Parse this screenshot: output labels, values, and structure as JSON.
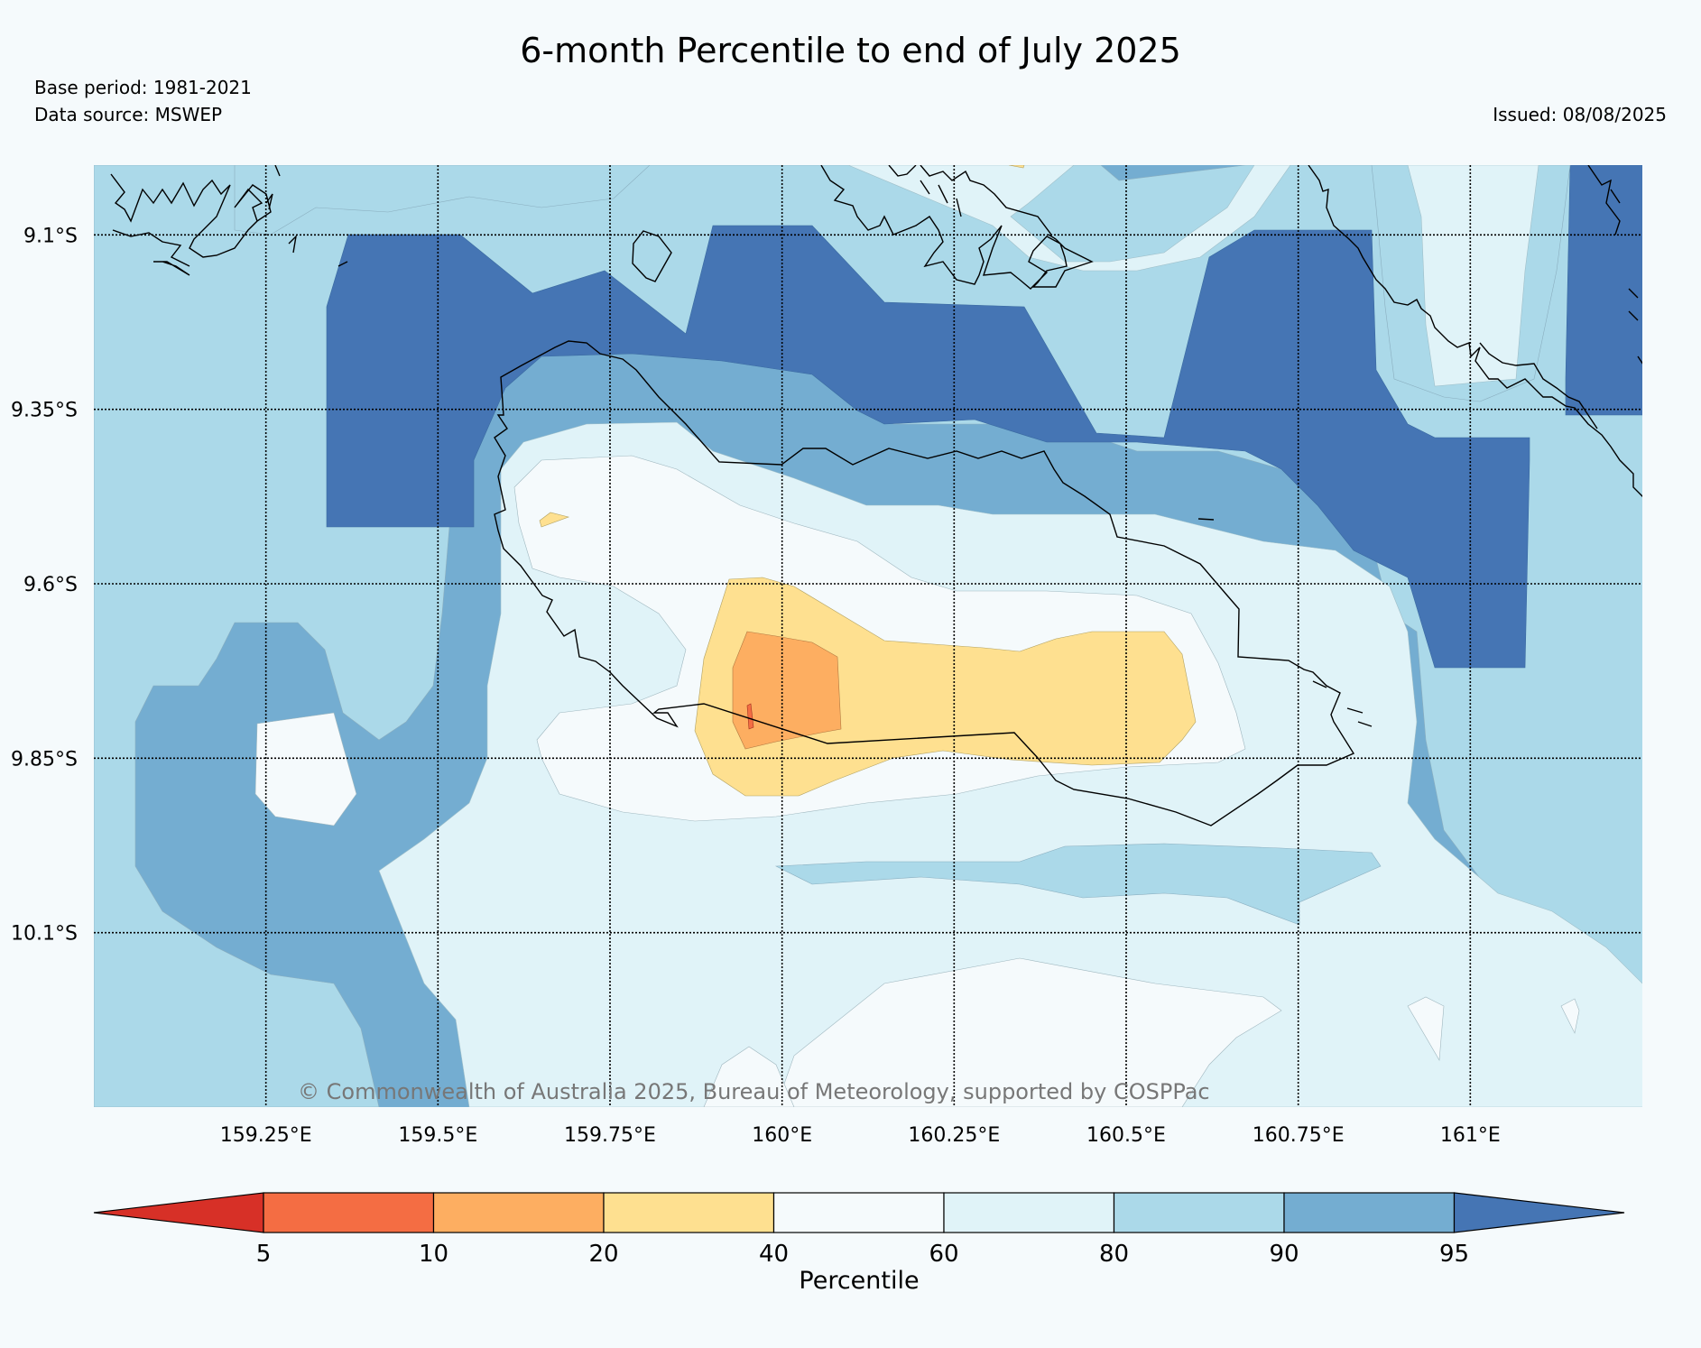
{
  "title": "6-month Percentile to end of July 2025",
  "base_period": "Base period: 1981-2021",
  "data_source": "Data source: MSWEP",
  "issued": "Issued: 08/08/2025",
  "copyright": "© Commonwealth of Australia 2025, Bureau of Meteorology, supported by COSPPac",
  "map": {
    "lon_range": [
      159.0,
      161.25
    ],
    "lat_range": [
      -10.35,
      -9.0
    ],
    "lon_ticks": [
      {
        "value": 159.25,
        "label": "159.25°E"
      },
      {
        "value": 159.5,
        "label": "159.5°E"
      },
      {
        "value": 159.75,
        "label": "159.75°E"
      },
      {
        "value": 160.0,
        "label": "160°E"
      },
      {
        "value": 160.25,
        "label": "160.25°E"
      },
      {
        "value": 160.5,
        "label": "160.5°E"
      },
      {
        "value": 160.75,
        "label": "160.75°E"
      },
      {
        "value": 161.0,
        "label": "161°E"
      }
    ],
    "lat_ticks": [
      {
        "value": -9.1,
        "label": "9.1°S"
      },
      {
        "value": -9.35,
        "label": "9.35°S"
      },
      {
        "value": -9.6,
        "label": "9.6°S"
      },
      {
        "value": -9.85,
        "label": "9.85°S"
      },
      {
        "value": -10.1,
        "label": "10.1°S"
      }
    ],
    "gridlines": true
  },
  "colorbar": {
    "title": "Percentile",
    "boundaries": [
      "5",
      "10",
      "20",
      "40",
      "60",
      "80",
      "90",
      "95"
    ],
    "colors": [
      "#d73027",
      "#f46d43",
      "#fdae61",
      "#fee090",
      "#f5fafc",
      "#e0f3f8",
      "#abd9e9",
      "#74add1",
      "#4575b4"
    ],
    "extend": "both"
  }
}
